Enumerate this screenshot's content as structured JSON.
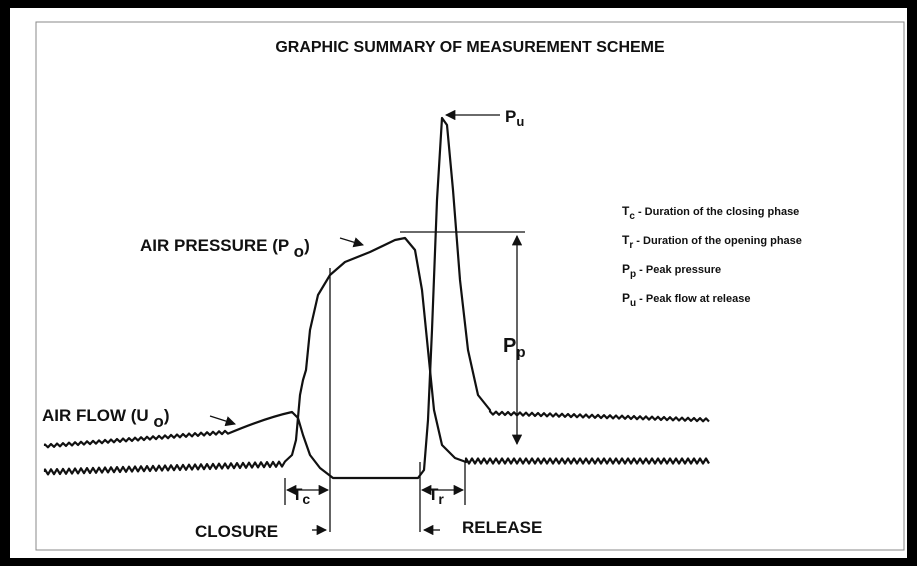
{
  "title": "GRAPHIC SUMMARY OF MEASUREMENT  SCHEME",
  "labels": {
    "air_pressure": {
      "main": "AIR PRESSURE (P ",
      "sub": "o",
      "close": ")"
    },
    "air_flow": {
      "main": "AIR FLOW (U ",
      "sub": "o",
      "close": ")"
    },
    "closure": "CLOSURE",
    "release": "RELEASE"
  },
  "markers": {
    "pu": {
      "symbol": "P",
      "sub": "u"
    },
    "pp": {
      "symbol": "P",
      "sub": "p"
    },
    "tc": {
      "symbol": "T",
      "sub": "c"
    },
    "tr": {
      "symbol": "T",
      "sub": "r"
    }
  },
  "legend": [
    {
      "symbol": "T",
      "sub": "c",
      "text": " -  Duration  of the closing phase"
    },
    {
      "symbol": "T",
      "sub": "r",
      "text": " -  Duration  of the opening phase"
    },
    {
      "symbol": "P",
      "sub": "p",
      "text": " -  Peak pressure"
    },
    {
      "symbol": "P",
      "sub": "u",
      "text": " -  Peak  flow at release"
    }
  ]
}
